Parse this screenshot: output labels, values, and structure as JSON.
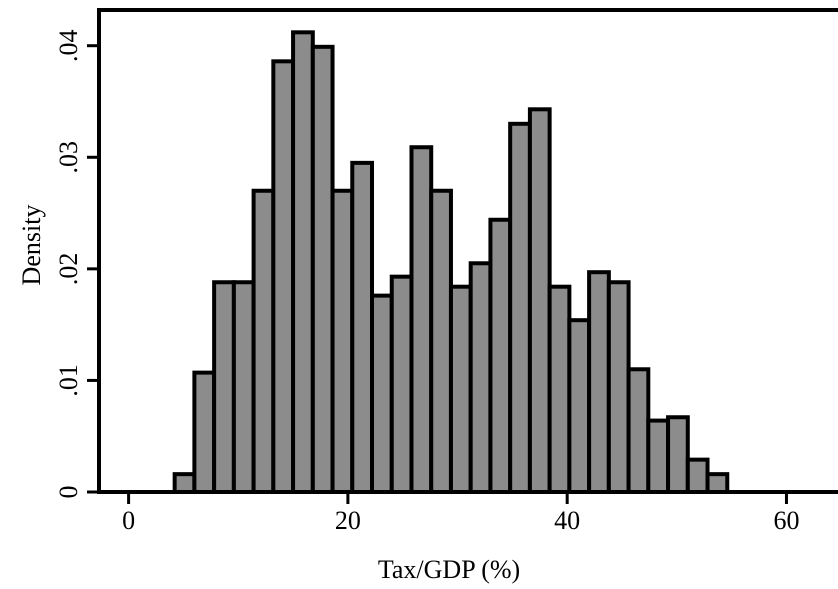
{
  "chart_data": {
    "type": "histogram",
    "x_label": "Tax/GDP (%)",
    "y_label": "Density",
    "bins": [
      4.2,
      6,
      7.8,
      9.6,
      11.4,
      13.2,
      15,
      16.8,
      18.6,
      20.4,
      22.2,
      24,
      25.8,
      27.6,
      29.4,
      31.2,
      33,
      34.8,
      36.6,
      38.4,
      40.2,
      42,
      43.8,
      45.6,
      47.4,
      49.2,
      51,
      52.8,
      54.6
    ],
    "values": [
      0.0016,
      0.0107,
      0.0188,
      0.0188,
      0.027,
      0.0386,
      0.0412,
      0.0399,
      0.027,
      0.0295,
      0.0176,
      0.0193,
      0.0309,
      0.027,
      0.0184,
      0.0205,
      0.0244,
      0.033,
      0.0343,
      0.0184,
      0.0154,
      0.0197,
      0.0188,
      0.011,
      0.0064,
      0.0067,
      0.0029,
      0.0016
    ],
    "color": "#8c8c8c",
    "xlim": [
      -2.7,
      64.7
    ],
    "ylim": [
      0,
      0.0432
    ],
    "xticks": [
      0,
      20,
      40,
      60
    ],
    "yticks": [
      0,
      {
        "value": 0.01,
        "label": ".01"
      },
      {
        "value": 0.02,
        "label": ".02"
      },
      {
        "value": 0.03,
        "label": ".03"
      },
      {
        "value": 0.04,
        "label": ".04"
      }
    ]
  }
}
